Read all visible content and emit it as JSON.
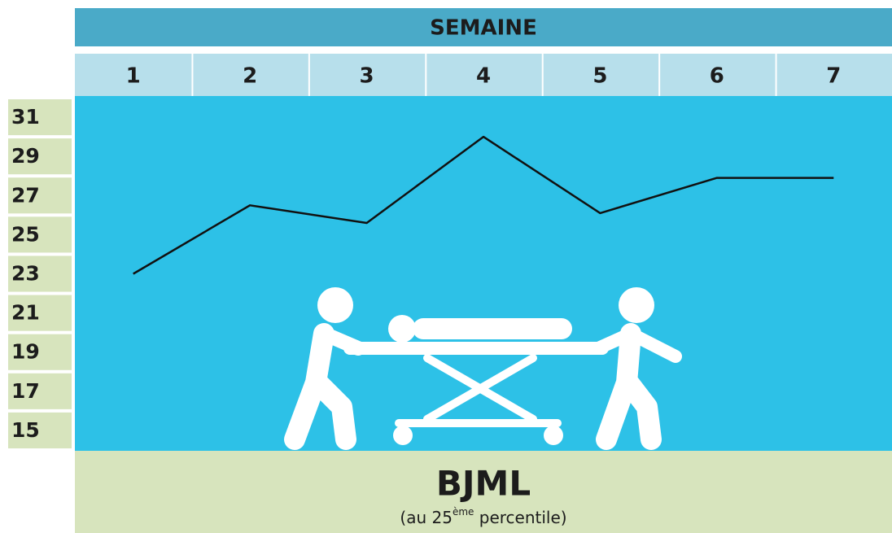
{
  "chart_data": {
    "type": "line",
    "x_label": "SEMAINE",
    "title": "BJML",
    "subtitle": [
      "(au 25",
      "ème",
      " percentile)"
    ],
    "categories": [
      "1",
      "2",
      "3",
      "4",
      "5",
      "6",
      "7"
    ],
    "values": [
      23,
      26.5,
      25.6,
      30,
      26.1,
      27.9,
      27.9
    ],
    "color": "#111111",
    "ylim": [
      14,
      32
    ],
    "yticks": [
      31,
      29,
      27,
      25,
      23,
      21,
      19,
      17,
      15
    ],
    "grid": false
  }
}
